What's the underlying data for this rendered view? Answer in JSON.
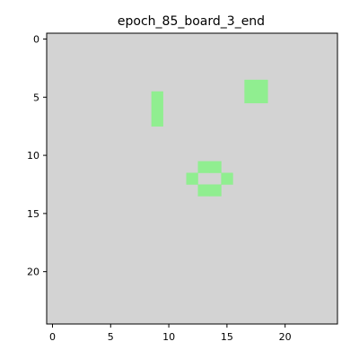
{
  "chart_data": {
    "type": "heatmap",
    "title": "epoch_85_board_3_end",
    "xlabel": "",
    "ylabel": "",
    "grid": false,
    "legend": "none",
    "rows": 25,
    "cols": 25,
    "xlim": [
      -0.5,
      24.5
    ],
    "ylim": [
      24.5,
      -0.5
    ],
    "x_ticks": [
      0,
      5,
      10,
      15,
      20
    ],
    "y_ticks": [
      0,
      5,
      10,
      15,
      20
    ],
    "background_color": "#d3d3d3",
    "alive_color": "#90ee90",
    "alive_cells": [
      [
        4,
        17
      ],
      [
        4,
        18
      ],
      [
        5,
        17
      ],
      [
        5,
        18
      ],
      [
        5,
        9
      ],
      [
        6,
        9
      ],
      [
        7,
        9
      ],
      [
        11,
        13
      ],
      [
        11,
        14
      ],
      [
        12,
        12
      ],
      [
        12,
        15
      ],
      [
        13,
        13
      ],
      [
        13,
        14
      ]
    ]
  }
}
